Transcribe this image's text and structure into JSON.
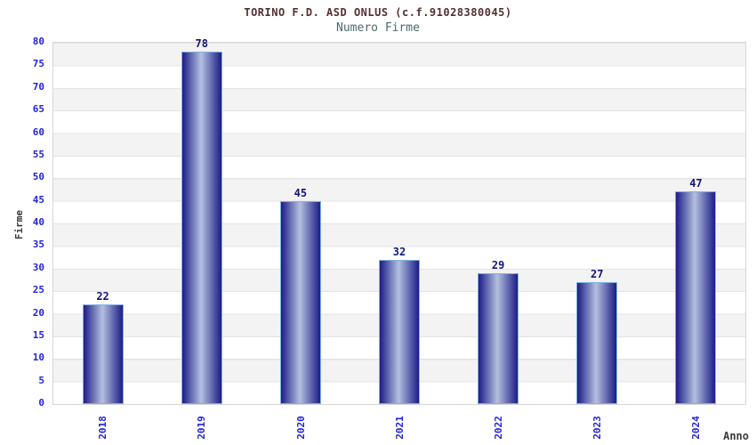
{
  "chart_data": {
    "type": "bar",
    "title": "TORINO F.D. ASD ONLUS (c.f.91028380045)",
    "subtitle": "Numero Firme",
    "xlabel": "Anno",
    "ylabel": "Firme",
    "categories": [
      "2018",
      "2019",
      "2020",
      "2021",
      "2022",
      "2023",
      "2024"
    ],
    "values": [
      22,
      78,
      45,
      32,
      29,
      27,
      47
    ],
    "ylim": [
      0,
      80
    ],
    "yticks": [
      0,
      5,
      10,
      15,
      20,
      25,
      30,
      35,
      40,
      45,
      50,
      55,
      60,
      65,
      70,
      75,
      80
    ],
    "grid": "alternating-horizontal-bands-every-5-units",
    "legend_position": "none",
    "colors": {
      "title": "#552f2f",
      "subtitle": "#4d6a6a",
      "tick_label": "#2222dd",
      "category_label": "#2222dd",
      "value_label": "#14147d",
      "axis_title": "#3a3a3a",
      "bar_edge_dark": "#1c1c86",
      "bar_center_light": "#b4c0e0",
      "bar_border": "#7fb2e2",
      "band_gray": "#f3f3f3",
      "band_white": "#ffffff",
      "gridline": "#e4e4e4",
      "plot_border": "#d6d6d6",
      "background": "#ffffff"
    }
  }
}
